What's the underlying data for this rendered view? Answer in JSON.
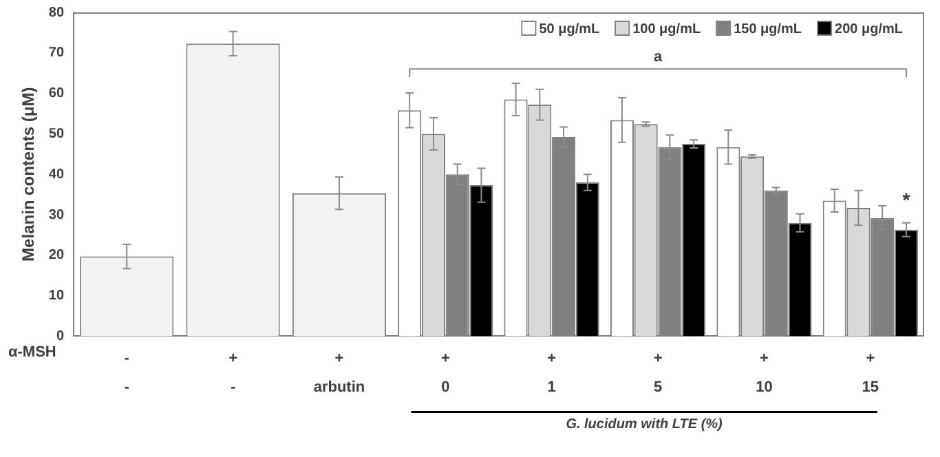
{
  "chart_data": {
    "type": "bar",
    "ylabel": "Melanin contents (μM)",
    "xlabel": "G. lucidum with LTE (%)",
    "categories": [
      "-\n-",
      "+\n-",
      "+\narbutin",
      "+\n0",
      "+\n1",
      "+\n5",
      "+\n10",
      "+\n15"
    ],
    "series": [
      {
        "color": "#f2f2f2",
        "values": [
          19.7,
          72.3,
          35.3,
          null,
          null,
          null,
          null,
          null
        ],
        "errors": [
          3,
          3,
          4,
          null,
          null,
          null,
          null,
          null
        ]
      },
      {
        "name": "50 μg/mL",
        "color": "#ffffff",
        "values": [
          null,
          null,
          null,
          55.8,
          58.5,
          53.4,
          46.7,
          33.5
        ],
        "errors": [
          null,
          null,
          null,
          4.3,
          4,
          5.5,
          4.2,
          2.8
        ]
      },
      {
        "name": "100 μg/mL",
        "color": "#d9d9d9",
        "values": [
          null,
          null,
          null,
          50,
          57.2,
          52.4,
          44.4,
          31.7
        ],
        "errors": [
          null,
          null,
          null,
          4,
          3.8,
          0.5,
          0.4,
          4.3
        ]
      },
      {
        "name": "150 μg/mL",
        "color": "#808080",
        "values": [
          null,
          null,
          null,
          40,
          49.2,
          46.7,
          36,
          29.2
        ],
        "errors": [
          null,
          null,
          null,
          2.5,
          2.5,
          3,
          0.7,
          3
        ]
      },
      {
        "name": "200 μg/mL",
        "color": "#000000",
        "values": [
          null,
          null,
          null,
          37.3,
          38,
          47.5,
          28,
          26.3
        ],
        "errors": [
          null,
          null,
          null,
          4.2,
          2,
          1,
          2.2,
          1.7
        ]
      }
    ],
    "ylim": [
      0,
      80
    ],
    "yticks": [
      0,
      10,
      20,
      30,
      40,
      50,
      60,
      70,
      80
    ],
    "grid": false,
    "legend": "top right",
    "annotations": [
      "α-MSH",
      "a",
      {
        "text": "*",
        "x": "+\n15",
        "y": 31
      }
    ]
  }
}
